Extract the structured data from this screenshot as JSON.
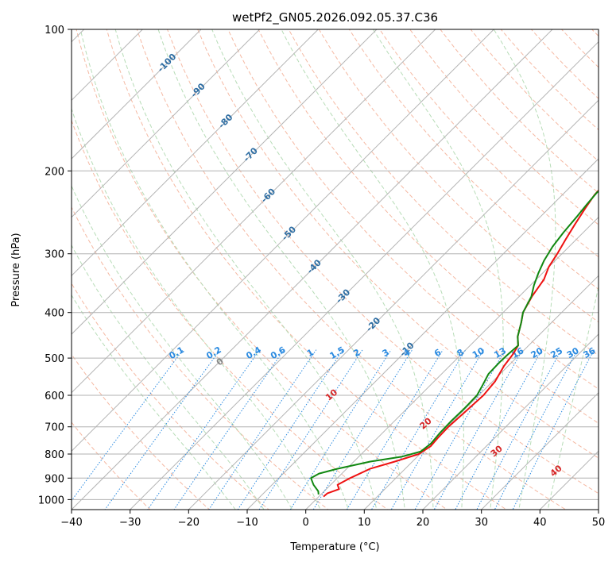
{
  "chart_data": {
    "type": "line",
    "subtype": "skew-t log-p diagram",
    "title": "wetPf2_GN05.2026.092.05.37.C36",
    "xlabel": "Temperature (°C)",
    "ylabel": "Pressure (hPa)",
    "xlim": [
      -40,
      50
    ],
    "ylim": [
      1050,
      100
    ],
    "x_ticks": [
      -40,
      -30,
      -20,
      -10,
      0,
      10,
      20,
      30,
      40,
      50
    ],
    "x_tick_labels": [
      "−40",
      "−30",
      "−20",
      "−10",
      "0",
      "10",
      "20",
      "30",
      "40",
      "50"
    ],
    "y_ticks": [
      100,
      200,
      300,
      400,
      500,
      600,
      700,
      800,
      900,
      1000
    ],
    "y_tick_labels": [
      "100",
      "200",
      "300",
      "400",
      "500",
      "600",
      "700",
      "800",
      "900",
      "1000"
    ],
    "grid": true,
    "isotherms": {
      "label_values": [
        -100,
        -90,
        -80,
        -70,
        -60,
        -50,
        -40,
        -30,
        -20,
        -10
      ],
      "labels": [
        "-100",
        "-90",
        "-80",
        "-70",
        "-60",
        "-50",
        "-40",
        "-30",
        "-20",
        "-10"
      ],
      "label_pressures": [
        118,
        135,
        157,
        185,
        226,
        272,
        320,
        370,
        425,
        480
      ],
      "line_values": [
        -100,
        -90,
        -80,
        -70,
        -60,
        -50,
        -40,
        -30,
        -20,
        -10,
        0,
        10,
        20,
        30,
        40,
        50
      ],
      "color": "#2f6ea3"
    },
    "mixing_ratio": {
      "values": [
        0.1,
        0.2,
        0.4,
        0.6,
        1,
        1.5,
        2,
        3,
        4,
        6,
        8,
        10,
        13,
        16,
        20,
        25,
        30,
        36
      ],
      "labels": [
        "0.1",
        "0.2",
        "0.4",
        "0.6",
        "1",
        "1.5",
        "2",
        "3",
        "4",
        "6",
        "8",
        "10",
        "13",
        "16",
        "20",
        "25",
        "30",
        "36"
      ],
      "label_pressure": 500,
      "color": "#2a8ae0"
    },
    "moist_adiabat_labels": {
      "values": [
        0,
        10,
        20,
        30,
        40
      ],
      "labels": [
        "0",
        "10",
        "20",
        "30",
        "40"
      ],
      "pressures": [
        510,
        600,
        690,
        790,
        870
      ]
    },
    "series": [
      {
        "name": "Temperature",
        "color": "#ee1111",
        "points": [
          {
            "p": 985,
            "t": 0.8
          },
          {
            "p": 970,
            "t": 0.9
          },
          {
            "p": 950,
            "t": 2.2
          },
          {
            "p": 930,
            "t": 1.2
          },
          {
            "p": 900,
            "t": 2.2
          },
          {
            "p": 860,
            "t": 4.0
          },
          {
            "p": 830,
            "t": 7.0
          },
          {
            "p": 800,
            "t": 9.8
          },
          {
            "p": 770,
            "t": 10.5
          },
          {
            "p": 740,
            "t": 10.3
          },
          {
            "p": 700,
            "t": 10.2
          },
          {
            "p": 650,
            "t": 10.5
          },
          {
            "p": 600,
            "t": 10.8
          },
          {
            "p": 560,
            "t": 10.4
          },
          {
            "p": 520,
            "t": 9.3
          },
          {
            "p": 490,
            "t": 8.8
          },
          {
            "p": 470,
            "t": 8.2
          },
          {
            "p": 450,
            "t": 6.6
          },
          {
            "p": 420,
            "t": 4.8
          },
          {
            "p": 400,
            "t": 3.4
          },
          {
            "p": 370,
            "t": 2.2
          },
          {
            "p": 340,
            "t": 1.3
          },
          {
            "p": 320,
            "t": 0.0
          },
          {
            "p": 300,
            "t": -0.8
          },
          {
            "p": 280,
            "t": -1.8
          },
          {
            "p": 260,
            "t": -2.8
          },
          {
            "p": 240,
            "t": -3.8
          },
          {
            "p": 225,
            "t": -4.5
          },
          {
            "p": 210,
            "t": -4.7
          },
          {
            "p": 200,
            "t": -3.8
          },
          {
            "p": 190,
            "t": -2.4
          },
          {
            "p": 180,
            "t": -1.2
          },
          {
            "p": 170,
            "t": 0.9
          },
          {
            "p": 160,
            "t": 4.0
          },
          {
            "p": 150,
            "t": 8.8
          },
          {
            "p": 140,
            "t": 14.3
          },
          {
            "p": 130,
            "t": 20.0
          },
          {
            "p": 120,
            "t": 23.6
          },
          {
            "p": 110,
            "t": 26.2
          },
          {
            "p": 100,
            "t": 28.0
          }
        ]
      },
      {
        "name": "Dewpoint",
        "color": "#118811",
        "points": [
          {
            "p": 975,
            "t": -0.4
          },
          {
            "p": 960,
            "t": -1.0
          },
          {
            "p": 930,
            "t": -2.9
          },
          {
            "p": 900,
            "t": -4.5
          },
          {
            "p": 880,
            "t": -3.9
          },
          {
            "p": 860,
            "t": -1.6
          },
          {
            "p": 830,
            "t": 2.8
          },
          {
            "p": 810,
            "t": 7.4
          },
          {
            "p": 790,
            "t": 9.7
          },
          {
            "p": 760,
            "t": 10.1
          },
          {
            "p": 720,
            "t": 9.8
          },
          {
            "p": 680,
            "t": 9.7
          },
          {
            "p": 640,
            "t": 9.8
          },
          {
            "p": 600,
            "t": 9.7
          },
          {
            "p": 570,
            "t": 8.9
          },
          {
            "p": 540,
            "t": 8.0
          },
          {
            "p": 510,
            "t": 7.9
          },
          {
            "p": 490,
            "t": 8.0
          },
          {
            "p": 470,
            "t": 8.2
          },
          {
            "p": 450,
            "t": 6.6
          },
          {
            "p": 420,
            "t": 4.8
          },
          {
            "p": 400,
            "t": 3.4
          },
          {
            "p": 370,
            "t": 2.1
          },
          {
            "p": 350,
            "t": 0.6
          },
          {
            "p": 330,
            "t": -0.7
          },
          {
            "p": 310,
            "t": -1.9
          },
          {
            "p": 290,
            "t": -2.8
          },
          {
            "p": 270,
            "t": -3.4
          },
          {
            "p": 250,
            "t": -3.8
          },
          {
            "p": 235,
            "t": -4.2
          },
          {
            "p": 222,
            "t": -4.5
          },
          {
            "p": 212,
            "t": -3.9
          },
          {
            "p": 200,
            "t": -3.6
          },
          {
            "p": 190,
            "t": -4.4
          },
          {
            "p": 180,
            "t": -5.7
          },
          {
            "p": 170,
            "t": -8.2
          },
          {
            "p": 160,
            "t": -11.3
          },
          {
            "p": 150,
            "t": -14.2
          },
          {
            "p": 140,
            "t": -15.6
          },
          {
            "p": 130,
            "t": -14.5
          },
          {
            "p": 120,
            "t": -11.5
          },
          {
            "p": 110,
            "t": -7.5
          },
          {
            "p": 100,
            "t": -2.6
          }
        ]
      }
    ]
  }
}
